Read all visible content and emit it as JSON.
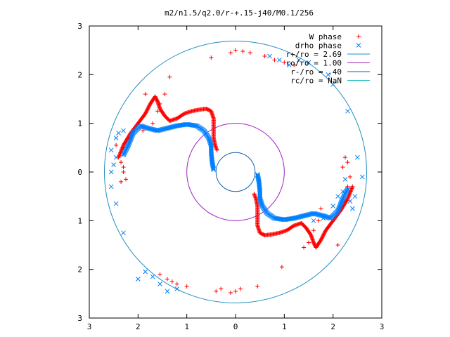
{
  "chart_data": {
    "type": "scatter",
    "title": "m2/n1.5/q2.0/r-+.15-j40/M0.1/256",
    "xlabel": "",
    "ylabel": "",
    "xlim": [
      -3,
      3
    ],
    "ylim": [
      -3,
      3
    ],
    "xticks": [
      "3",
      "2",
      "1",
      "0",
      "1",
      "2",
      "3"
    ],
    "yticks": [
      "3",
      "2",
      "1",
      "0",
      "1",
      "2",
      "3"
    ],
    "grid": false,
    "legend_position": "top-right",
    "legend": [
      {
        "label": "W phase",
        "kind": "marker",
        "marker": "plus",
        "color": "#ff0000"
      },
      {
        "label": "drho phase",
        "kind": "marker",
        "marker": "cross",
        "color": "#0080ff"
      },
      {
        "label": "r+/ro = 2.69",
        "kind": "line",
        "color": "#1e90c8"
      },
      {
        "label": "ro/ro = 1.00",
        "kind": "line",
        "color": "#a020c0"
      },
      {
        "label": "r-/ro = .40",
        "kind": "line",
        "color": "#1060b0"
      },
      {
        "label": "rc/ro = NaN",
        "kind": "line",
        "color": "#20c0c0"
      }
    ],
    "circles": [
      {
        "name": "r+/ro",
        "r": 2.69,
        "color": "#2090c0"
      },
      {
        "name": "ro/ro",
        "r": 1.0,
        "color": "#a020c0"
      },
      {
        "name": "r-/ro",
        "r": 0.4,
        "color": "#1060b0"
      }
    ],
    "w_ridge": [
      [
        -2.4,
        0.3
      ],
      [
        -2.3,
        0.55
      ],
      [
        -2.15,
        0.8
      ],
      [
        -2.0,
        1.0
      ],
      [
        -1.85,
        1.2
      ],
      [
        -1.75,
        1.4
      ],
      [
        -1.65,
        1.55
      ],
      [
        -1.6,
        1.45
      ],
      [
        -1.55,
        1.3
      ],
      [
        -1.45,
        1.15
      ],
      [
        -1.35,
        1.05
      ],
      [
        -1.2,
        1.1
      ],
      [
        -1.05,
        1.2
      ],
      [
        -0.9,
        1.25
      ],
      [
        -0.75,
        1.28
      ],
      [
        -0.6,
        1.3
      ],
      [
        -0.5,
        1.25
      ],
      [
        -0.45,
        1.1
      ],
      [
        -0.45,
        0.9
      ],
      [
        -0.45,
        0.7
      ],
      [
        -0.42,
        0.55
      ],
      [
        -0.38,
        0.45
      ]
    ],
    "drho_ridge": [
      [
        -2.3,
        0.35
      ],
      [
        -2.2,
        0.55
      ],
      [
        -2.1,
        0.8
      ],
      [
        -1.95,
        0.95
      ],
      [
        -1.8,
        0.9
      ],
      [
        -1.6,
        0.85
      ],
      [
        -1.4,
        0.9
      ],
      [
        -1.2,
        0.95
      ],
      [
        -1.0,
        0.98
      ],
      [
        -0.8,
        0.95
      ],
      [
        -0.65,
        0.85
      ],
      [
        -0.55,
        0.7
      ],
      [
        -0.5,
        0.55
      ],
      [
        -0.5,
        0.4
      ],
      [
        -0.48,
        0.2
      ],
      [
        -0.45,
        0.05
      ]
    ],
    "w_extra": [
      [
        -2.35,
        0.2
      ],
      [
        -2.3,
        0.1
      ],
      [
        -2.3,
        0.0
      ],
      [
        -2.25,
        -0.15
      ],
      [
        -2.35,
        -0.2
      ],
      [
        -2.3,
        0.5
      ],
      [
        -2.45,
        0.55
      ],
      [
        -2.2,
        0.7
      ],
      [
        -1.9,
        0.85
      ],
      [
        -1.7,
        1.0
      ],
      [
        -1.35,
        1.95
      ],
      [
        -1.6,
        1.25
      ],
      [
        -1.55,
        1.4
      ],
      [
        -1.85,
        1.6
      ],
      [
        -1.45,
        1.6
      ],
      [
        -0.5,
        2.35
      ],
      [
        0.0,
        2.5
      ],
      [
        0.15,
        2.48
      ],
      [
        0.3,
        2.45
      ],
      [
        -0.1,
        2.45
      ],
      [
        0.6,
        2.38
      ],
      [
        0.8,
        2.3
      ],
      [
        1.0,
        2.25
      ],
      [
        1.2,
        2.2
      ],
      [
        -1.55,
        -2.1
      ],
      [
        -1.4,
        -2.2
      ],
      [
        -1.3,
        -2.25
      ],
      [
        -1.2,
        -2.3
      ],
      [
        -1.0,
        -2.35
      ],
      [
        -0.4,
        -2.45
      ],
      [
        -0.3,
        -2.4
      ],
      [
        -0.1,
        -2.48
      ],
      [
        0.0,
        -2.45
      ],
      [
        0.1,
        -2.4
      ],
      [
        0.45,
        -2.35
      ],
      [
        0.95,
        -1.95
      ],
      [
        1.4,
        -1.55
      ],
      [
        1.5,
        -1.45
      ],
      [
        1.6,
        -1.2
      ],
      [
        1.7,
        -1.0
      ],
      [
        1.75,
        -0.75
      ],
      [
        2.1,
        -1.5
      ],
      [
        2.25,
        -0.6
      ],
      [
        2.3,
        -0.3
      ],
      [
        2.35,
        -0.1
      ],
      [
        2.2,
        0.1
      ],
      [
        2.3,
        0.2
      ],
      [
        2.25,
        0.3
      ]
    ],
    "drho_extra": [
      [
        -2.45,
        0.3
      ],
      [
        -2.5,
        0.15
      ],
      [
        -2.55,
        0.0
      ],
      [
        -2.55,
        -0.3
      ],
      [
        -2.45,
        -0.65
      ],
      [
        -2.3,
        -1.25
      ],
      [
        -2.55,
        0.45
      ],
      [
        -2.45,
        0.7
      ],
      [
        -2.4,
        0.8
      ],
      [
        -2.3,
        0.85
      ],
      [
        -1.85,
        -2.05
      ],
      [
        -1.7,
        -2.15
      ],
      [
        -1.55,
        -2.3
      ],
      [
        -1.4,
        -2.45
      ],
      [
        -1.2,
        -2.4
      ],
      [
        -2.0,
        -2.2
      ],
      [
        1.6,
        -1.0
      ],
      [
        1.8,
        -0.95
      ],
      [
        2.0,
        -0.7
      ],
      [
        2.1,
        -0.5
      ],
      [
        2.2,
        -0.4
      ],
      [
        2.25,
        -0.15
      ],
      [
        2.3,
        -0.35
      ],
      [
        2.35,
        -0.6
      ],
      [
        2.4,
        -0.75
      ],
      [
        2.45,
        -0.5
      ],
      [
        2.5,
        0.3
      ],
      [
        2.6,
        -0.1
      ],
      [
        2.3,
        1.25
      ],
      [
        2.0,
        1.8
      ],
      [
        1.9,
        2.0
      ],
      [
        1.5,
        2.25
      ],
      [
        1.3,
        2.3
      ],
      [
        1.1,
        2.2
      ],
      [
        0.9,
        2.3
      ],
      [
        0.7,
        2.38
      ]
    ]
  }
}
